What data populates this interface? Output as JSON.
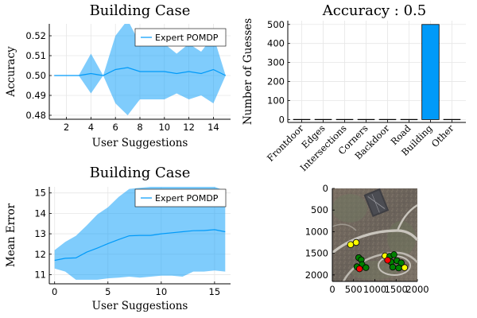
{
  "chart_data": [
    {
      "type": "area",
      "title": "Building Case",
      "xlabel": "User Suggestions",
      "ylabel": "Accuracy",
      "xlim": [
        0.6,
        15.4
      ],
      "ylim": [
        0.478,
        0.526
      ],
      "xticks": [
        2,
        4,
        6,
        8,
        10,
        12,
        14
      ],
      "yticks": [
        0.48,
        0.49,
        0.5,
        0.51,
        0.52
      ],
      "ytick_labels": [
        "0.48",
        "0.49",
        "0.50",
        "0.51",
        "0.52"
      ],
      "grid": true,
      "legend": "top-right",
      "series": [
        {
          "name": "Expert POMDP",
          "color": "#009af9",
          "x": [
            1,
            2,
            3,
            4,
            5,
            6,
            7,
            8,
            9,
            10,
            11,
            12,
            13,
            14,
            15
          ],
          "mean": [
            0.5,
            0.5,
            0.5,
            0.501,
            0.5,
            0.503,
            0.504,
            0.502,
            0.502,
            0.502,
            0.501,
            0.502,
            0.501,
            0.503,
            0.5
          ],
          "upper": [
            0.5,
            0.5,
            0.5,
            0.511,
            0.5,
            0.52,
            0.528,
            0.516,
            0.516,
            0.516,
            0.511,
            0.516,
            0.512,
            0.52,
            0.5
          ],
          "lower": [
            0.5,
            0.5,
            0.5,
            0.491,
            0.5,
            0.486,
            0.48,
            0.488,
            0.488,
            0.488,
            0.491,
            0.488,
            0.49,
            0.486,
            0.5
          ]
        }
      ]
    },
    {
      "type": "bar",
      "title": "Accuracy : 0.5",
      "xlabel": "",
      "ylabel": "Number of Guesses",
      "categories": [
        "Frontdoor",
        "Edges",
        "Intersections",
        "Corners",
        "Backdoor",
        "Road",
        "Building",
        "Other"
      ],
      "values": [
        0,
        0,
        0,
        0,
        0,
        0,
        500,
        0
      ],
      "ylim": [
        -15,
        520
      ],
      "yticks": [
        0,
        100,
        200,
        300,
        400,
        500
      ],
      "ytick_labels": [
        "0",
        "100",
        "200",
        "300",
        "400",
        "500"
      ],
      "grid": true,
      "bar_color": "#009af9"
    },
    {
      "type": "area",
      "title": "Building Case",
      "xlabel": "User Suggestions",
      "ylabel": "Mean Error",
      "xlim": [
        -0.5,
        16.5
      ],
      "ylim": [
        10.55,
        15.3
      ],
      "xticks": [
        0,
        5,
        10,
        15
      ],
      "yticks": [
        11,
        12,
        13,
        14,
        15
      ],
      "ytick_labels": [
        "11",
        "12",
        "13",
        "14",
        "15"
      ],
      "grid": true,
      "legend": "top-right",
      "series": [
        {
          "name": "Expert POMDP",
          "color": "#009af9",
          "x": [
            0,
            1,
            2,
            3,
            4,
            5,
            6,
            7,
            8,
            9,
            10,
            11,
            12,
            13,
            14,
            15,
            16
          ],
          "mean": [
            11.7,
            11.8,
            11.82,
            12.1,
            12.3,
            12.52,
            12.72,
            12.9,
            12.92,
            12.92,
            13.0,
            13.05,
            13.1,
            13.15,
            13.16,
            13.2,
            13.1
          ],
          "upper": [
            12.2,
            12.6,
            12.9,
            13.4,
            13.95,
            14.3,
            14.8,
            15.2,
            15.25,
            15.3,
            15.3,
            15.3,
            15.3,
            15.3,
            15.3,
            15.3,
            15.1
          ],
          "lower": [
            11.3,
            11.15,
            10.75,
            10.75,
            10.75,
            10.82,
            10.85,
            10.9,
            10.85,
            10.9,
            10.95,
            10.95,
            10.9,
            11.15,
            11.15,
            11.2,
            11.15
          ]
        }
      ]
    },
    {
      "type": "scatter",
      "title": "",
      "xlabel": "",
      "ylabel": "",
      "xlim": [
        0,
        2000
      ],
      "ylim": [
        0,
        2150
      ],
      "y_inverted": true,
      "xticks": [
        0,
        500,
        1000,
        1500,
        2000
      ],
      "xtick_labels": [
        "0",
        "500",
        "1000",
        "1500",
        "2000"
      ],
      "yticks": [
        0,
        500,
        1000,
        1500,
        2000
      ],
      "ytick_labels": [
        "0",
        "500",
        "1000",
        "1500",
        "2000"
      ],
      "grid": false,
      "background": "aerial photo",
      "points": [
        {
          "x": 430,
          "y": 1300,
          "color": "#ffff00"
        },
        {
          "x": 560,
          "y": 1250,
          "color": "#ffff00"
        },
        {
          "x": 1240,
          "y": 1560,
          "color": "#ffff00"
        },
        {
          "x": 1700,
          "y": 1830,
          "color": "#ffff00"
        },
        {
          "x": 620,
          "y": 1600,
          "color": "#008000"
        },
        {
          "x": 680,
          "y": 1650,
          "color": "#008000"
        },
        {
          "x": 700,
          "y": 1760,
          "color": "#008000"
        },
        {
          "x": 580,
          "y": 1810,
          "color": "#008000"
        },
        {
          "x": 790,
          "y": 1830,
          "color": "#008000"
        },
        {
          "x": 1350,
          "y": 1570,
          "color": "#008000"
        },
        {
          "x": 1450,
          "y": 1530,
          "color": "#008000"
        },
        {
          "x": 1380,
          "y": 1700,
          "color": "#008000"
        },
        {
          "x": 1520,
          "y": 1670,
          "color": "#008000"
        },
        {
          "x": 1620,
          "y": 1720,
          "color": "#008000"
        },
        {
          "x": 1420,
          "y": 1820,
          "color": "#008000"
        },
        {
          "x": 1560,
          "y": 1840,
          "color": "#008000"
        },
        {
          "x": 640,
          "y": 1860,
          "color": "#ff0000"
        },
        {
          "x": 1300,
          "y": 1660,
          "color": "#ff0000"
        }
      ]
    }
  ]
}
